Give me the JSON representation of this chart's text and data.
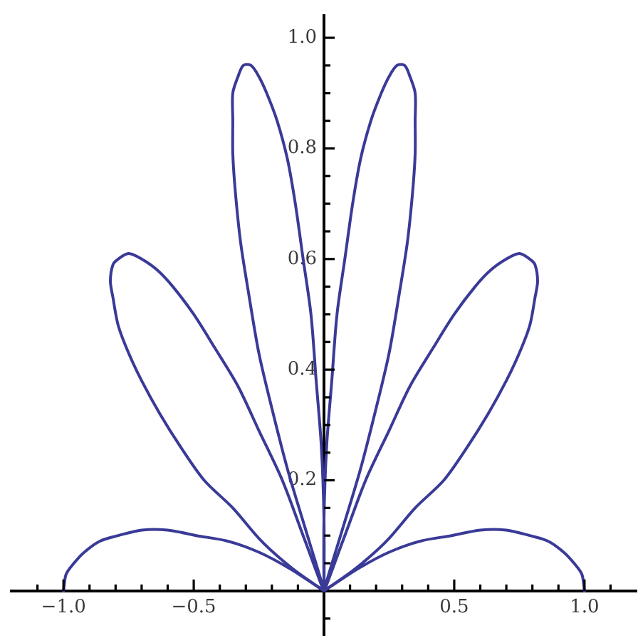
{
  "chart_data": {
    "type": "line",
    "x": [
      1.0,
      0.99,
      0.96,
      0.92,
      0.86,
      0.79,
      0.7,
      0.6,
      0.49,
      0.37,
      0.25,
      0.13,
      0,
      0.12,
      0.24,
      0.35,
      0.46,
      0.55,
      0.63,
      0.7,
      0.75,
      0.79,
      0.81,
      0.82,
      0.81,
      0.79,
      0.75,
      0.7,
      0.64,
      0.58,
      0.5,
      0.42,
      0.33,
      0.25,
      0.16,
      0.08,
      0,
      0.07,
      0.14,
      0.2,
      0.25,
      0.29,
      0.32,
      0.34,
      0.35,
      0.35,
      0.35,
      0.33,
      0.31,
      0.28,
      0.25,
      0.22,
      0.18,
      0.14,
      0.11,
      0.08,
      0.05,
      0.03,
      0.01,
      0,
      0,
      0,
      -0.01,
      -0.03,
      -0.05,
      -0.08,
      -0.11,
      -0.14,
      -0.18,
      -0.22,
      -0.25,
      -0.28,
      -0.31,
      -0.33,
      -0.35,
      -0.35,
      -0.35,
      -0.34,
      -0.32,
      -0.29,
      -0.25,
      -0.2,
      -0.14,
      -0.07,
      0,
      -0.08,
      -0.16,
      -0.25,
      -0.33,
      -0.42,
      -0.5,
      -0.58,
      -0.64,
      -0.7,
      -0.75,
      -0.79,
      -0.81,
      -0.82,
      -0.81,
      -0.79,
      -0.75,
      -0.7,
      -0.63,
      -0.55,
      -0.46,
      -0.35,
      -0.24,
      -0.12,
      0,
      -0.13,
      -0.25,
      -0.37,
      -0.49,
      -0.6,
      -0.7,
      -0.79,
      -0.86,
      -0.92,
      -0.96,
      -0.99,
      -1.0
    ],
    "values": [
      0,
      0.03,
      0.05,
      0.07,
      0.09,
      0.1,
      0.11,
      0.11,
      0.1,
      0.09,
      0.07,
      0.04,
      0,
      0.04,
      0.09,
      0.15,
      0.2,
      0.26,
      0.32,
      0.38,
      0.43,
      0.48,
      0.53,
      0.56,
      0.59,
      0.6,
      0.61,
      0.6,
      0.58,
      0.55,
      0.5,
      0.44,
      0.37,
      0.29,
      0.2,
      0.1,
      0,
      0.11,
      0.22,
      0.33,
      0.43,
      0.54,
      0.63,
      0.72,
      0.79,
      0.85,
      0.9,
      0.93,
      0.95,
      0.95,
      0.93,
      0.9,
      0.85,
      0.78,
      0.7,
      0.6,
      0.5,
      0.38,
      0.26,
      0.13,
      0,
      0.13,
      0.26,
      0.38,
      0.5,
      0.6,
      0.7,
      0.78,
      0.85,
      0.9,
      0.93,
      0.95,
      0.95,
      0.93,
      0.9,
      0.85,
      0.79,
      0.72,
      0.63,
      0.54,
      0.43,
      0.33,
      0.22,
      0.11,
      0,
      0.1,
      0.2,
      0.29,
      0.37,
      0.44,
      0.5,
      0.55,
      0.58,
      0.6,
      0.61,
      0.6,
      0.59,
      0.56,
      0.53,
      0.48,
      0.43,
      0.38,
      0.32,
      0.26,
      0.2,
      0.15,
      0.09,
      0.04,
      0,
      0.04,
      0.07,
      0.09,
      0.1,
      0.11,
      0.11,
      0.1,
      0.09,
      0.07,
      0.05,
      0.03,
      0
    ],
    "color": "#3a3a98",
    "marker": "none",
    "xlim": [
      -1.2,
      1.2
    ],
    "ylim": [
      -0.08,
      1.04
    ],
    "xticks": [
      {
        "value": -1.1,
        "label": null
      },
      {
        "value": -1.0,
        "label": "−1.0"
      },
      {
        "value": -0.9,
        "label": null
      },
      {
        "value": -0.8,
        "label": null
      },
      {
        "value": -0.7,
        "label": null
      },
      {
        "value": -0.6,
        "label": null
      },
      {
        "value": -0.5,
        "label": "−0.5"
      },
      {
        "value": -0.4,
        "label": null
      },
      {
        "value": -0.3,
        "label": null
      },
      {
        "value": -0.2,
        "label": null
      },
      {
        "value": -0.1,
        "label": null
      },
      {
        "value": 0.1,
        "label": null
      },
      {
        "value": 0.2,
        "label": null
      },
      {
        "value": 0.3,
        "label": null
      },
      {
        "value": 0.4,
        "label": null
      },
      {
        "value": 0.5,
        "label": "0.5"
      },
      {
        "value": 0.6,
        "label": null
      },
      {
        "value": 0.7,
        "label": null
      },
      {
        "value": 0.8,
        "label": null
      },
      {
        "value": 0.9,
        "label": null
      },
      {
        "value": 1.0,
        "label": "1.0"
      },
      {
        "value": 1.1,
        "label": null
      }
    ],
    "yticks": [
      {
        "value": -0.05,
        "label": null
      },
      {
        "value": 0.05,
        "label": null
      },
      {
        "value": 0.1,
        "label": null
      },
      {
        "value": 0.15,
        "label": null
      },
      {
        "value": 0.2,
        "label": "0.2"
      },
      {
        "value": 0.25,
        "label": null
      },
      {
        "value": 0.3,
        "label": null
      },
      {
        "value": 0.35,
        "label": null
      },
      {
        "value": 0.4,
        "label": "0.4"
      },
      {
        "value": 0.45,
        "label": null
      },
      {
        "value": 0.5,
        "label": null
      },
      {
        "value": 0.55,
        "label": null
      },
      {
        "value": 0.6,
        "label": "0.6"
      },
      {
        "value": 0.65,
        "label": null
      },
      {
        "value": 0.7,
        "label": null
      },
      {
        "value": 0.75,
        "label": null
      },
      {
        "value": 0.8,
        "label": "0.8"
      },
      {
        "value": 0.85,
        "label": null
      },
      {
        "value": 0.9,
        "label": null
      },
      {
        "value": 0.95,
        "label": null
      },
      {
        "value": 1.0,
        "label": "1.0"
      }
    ]
  }
}
